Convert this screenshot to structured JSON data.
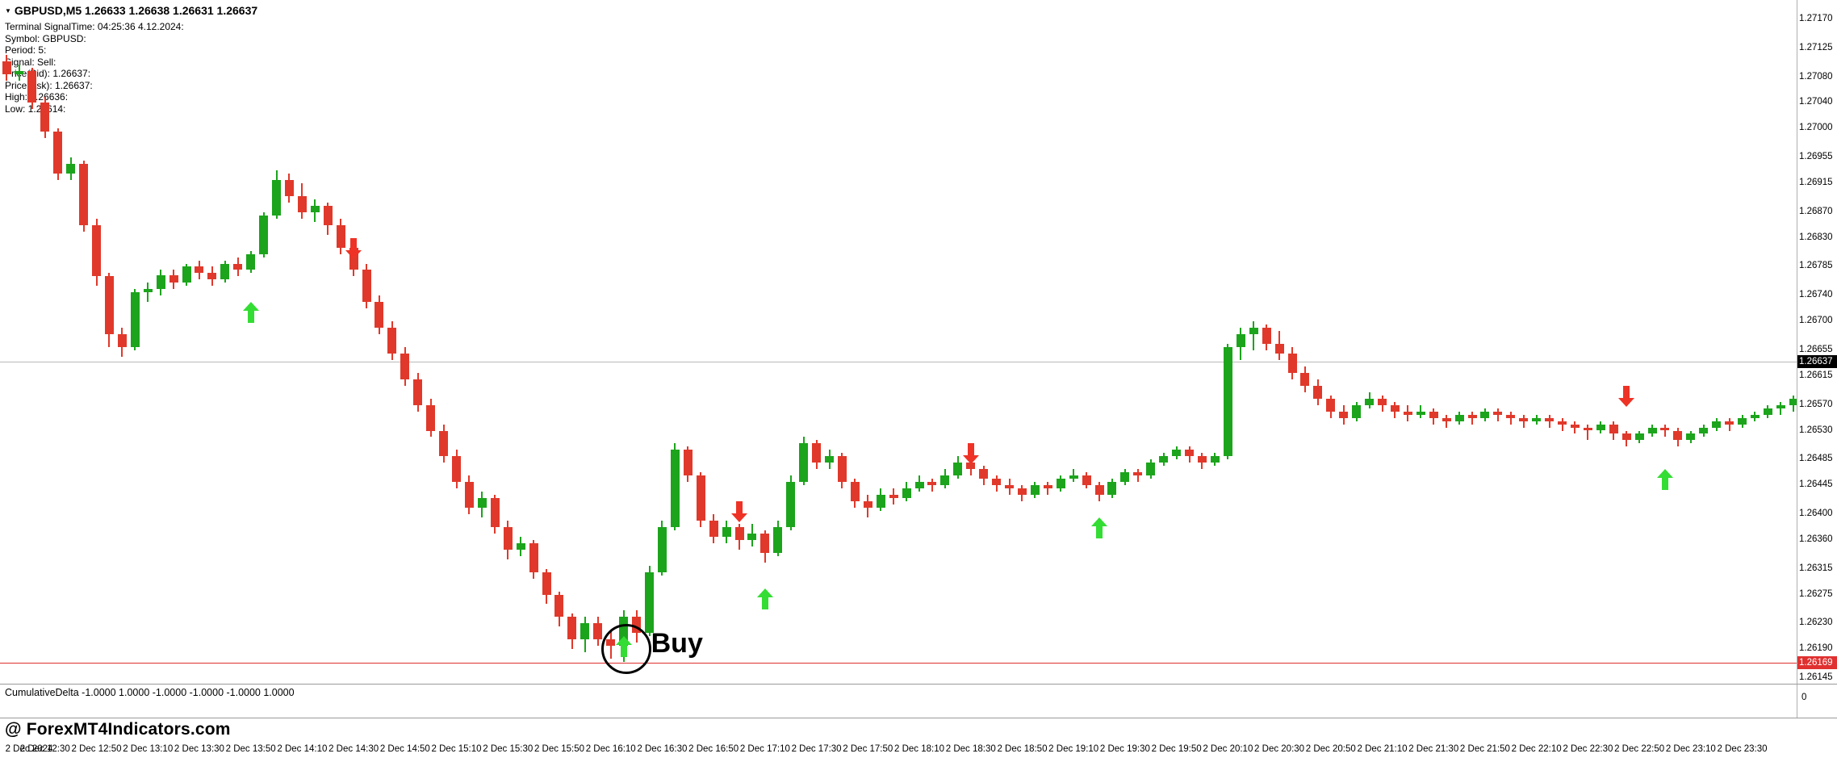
{
  "window": {
    "title_line": "GBPUSD,M5 1.26633 1.26638 1.26631 1.26637",
    "symbol_triangle_icon": "▼"
  },
  "comment_lines": [
    "Terminal SignalTime: 04:25:36   4.12.2024:",
    "Symbol: GBPUSD:",
    "Period: 5:",
    "Signal: Sell:",
    "Price(Bid): 1.26637:",
    "Price(Ask): 1.26637:",
    "High: 1.26636:",
    "Low: 1.26614:"
  ],
  "watermark": "@ ForexMT4Indicators.com",
  "indicator_panel": {
    "label": "CumulativeDelta -1.0000 1.0000 -1.0000 -1.0000 -1.0000 1.0000",
    "axis_zero": "0"
  },
  "colors": {
    "bull_candle": "#1ca41c",
    "bear_candle": "#e0392b",
    "buy_arrow": "#33dd33",
    "sell_arrow": "#ee3326",
    "bid_line": "#b9b9b9",
    "alert_line": "#e03030",
    "bid_tag_bg": "#000000",
    "alert_tag_bg": "#e03030"
  },
  "chart_data": {
    "type": "candlestick",
    "symbol": "GBPUSD",
    "timeframe": "M5",
    "start_time": "2 Dec 12:15",
    "interval_minutes": 5,
    "ohlc_fields": [
      "open",
      "high",
      "low",
      "close"
    ],
    "candles": [
      [
        1.27105,
        1.27115,
        1.27075,
        1.27085
      ],
      [
        1.27085,
        1.271,
        1.27075,
        1.2709
      ],
      [
        1.2709,
        1.27095,
        1.2703,
        1.2704
      ],
      [
        1.2704,
        1.2705,
        1.26985,
        1.26995
      ],
      [
        1.26995,
        1.27,
        1.2692,
        1.2693
      ],
      [
        1.2693,
        1.26955,
        1.2692,
        1.26945
      ],
      [
        1.26945,
        1.2695,
        1.2684,
        1.2685
      ],
      [
        1.2685,
        1.2686,
        1.26755,
        1.2677
      ],
      [
        1.2677,
        1.26775,
        1.2666,
        1.2668
      ],
      [
        1.2668,
        1.2669,
        1.26645,
        1.2666
      ],
      [
        1.2666,
        1.2675,
        1.26655,
        1.26745
      ],
      [
        1.26745,
        1.2676,
        1.2673,
        1.2675
      ],
      [
        1.2675,
        1.2678,
        1.2674,
        1.26772
      ],
      [
        1.26772,
        1.2678,
        1.2675,
        1.2676
      ],
      [
        1.2676,
        1.2679,
        1.26755,
        1.26785
      ],
      [
        1.26785,
        1.26795,
        1.26765,
        1.26775
      ],
      [
        1.26775,
        1.26785,
        1.26755,
        1.26765
      ],
      [
        1.26765,
        1.26795,
        1.2676,
        1.2679
      ],
      [
        1.2679,
        1.268,
        1.2677,
        1.2678
      ],
      [
        1.2678,
        1.2681,
        1.26775,
        1.26805
      ],
      [
        1.26805,
        1.2687,
        1.268,
        1.26865
      ],
      [
        1.26865,
        1.26935,
        1.2686,
        1.2692
      ],
      [
        1.2692,
        1.2693,
        1.26885,
        1.26895
      ],
      [
        1.26895,
        1.26915,
        1.2686,
        1.2687
      ],
      [
        1.2687,
        1.2689,
        1.26855,
        1.2688
      ],
      [
        1.2688,
        1.26885,
        1.26835,
        1.2685
      ],
      [
        1.2685,
        1.2686,
        1.26805,
        1.26815
      ],
      [
        1.26815,
        1.26825,
        1.2677,
        1.2678
      ],
      [
        1.2678,
        1.2679,
        1.2672,
        1.2673
      ],
      [
        1.2673,
        1.2674,
        1.2668,
        1.2669
      ],
      [
        1.2669,
        1.267,
        1.2664,
        1.2665
      ],
      [
        1.2665,
        1.2666,
        1.266,
        1.2661
      ],
      [
        1.2661,
        1.2662,
        1.2656,
        1.2657
      ],
      [
        1.2657,
        1.2658,
        1.2652,
        1.2653
      ],
      [
        1.2653,
        1.2654,
        1.2648,
        1.2649
      ],
      [
        1.2649,
        1.265,
        1.2644,
        1.2645
      ],
      [
        1.2645,
        1.2646,
        1.264,
        1.2641
      ],
      [
        1.2641,
        1.26435,
        1.26395,
        1.26425
      ],
      [
        1.26425,
        1.2643,
        1.2637,
        1.2638
      ],
      [
        1.2638,
        1.2639,
        1.2633,
        1.26345
      ],
      [
        1.26345,
        1.26365,
        1.26335,
        1.26355
      ],
      [
        1.26355,
        1.2636,
        1.263,
        1.2631
      ],
      [
        1.2631,
        1.26315,
        1.2626,
        1.26275
      ],
      [
        1.26275,
        1.2628,
        1.26225,
        1.2624
      ],
      [
        1.2624,
        1.26245,
        1.2619,
        1.26205
      ],
      [
        1.26205,
        1.2624,
        1.26185,
        1.2623
      ],
      [
        1.2623,
        1.2624,
        1.26195,
        1.26205
      ],
      [
        1.26205,
        1.2622,
        1.26175,
        1.26195
      ],
      [
        1.26195,
        1.2625,
        1.2617,
        1.2624
      ],
      [
        1.2624,
        1.2625,
        1.262,
        1.26215
      ],
      [
        1.26215,
        1.2632,
        1.2621,
        1.2631
      ],
      [
        1.2631,
        1.2639,
        1.26305,
        1.2638
      ],
      [
        1.2638,
        1.2651,
        1.26375,
        1.265
      ],
      [
        1.265,
        1.26505,
        1.2645,
        1.2646
      ],
      [
        1.2646,
        1.26465,
        1.2638,
        1.2639
      ],
      [
        1.2639,
        1.264,
        1.26355,
        1.26365
      ],
      [
        1.26365,
        1.2639,
        1.26355,
        1.2638
      ],
      [
        1.2638,
        1.26385,
        1.26345,
        1.2636
      ],
      [
        1.2636,
        1.26385,
        1.2635,
        1.2637
      ],
      [
        1.2637,
        1.26375,
        1.26325,
        1.2634
      ],
      [
        1.2634,
        1.2639,
        1.26335,
        1.2638
      ],
      [
        1.2638,
        1.2646,
        1.26375,
        1.2645
      ],
      [
        1.2645,
        1.2652,
        1.26445,
        1.2651
      ],
      [
        1.2651,
        1.26515,
        1.2647,
        1.2648
      ],
      [
        1.2648,
        1.265,
        1.2647,
        1.2649
      ],
      [
        1.2649,
        1.26495,
        1.2644,
        1.2645
      ],
      [
        1.2645,
        1.26455,
        1.2641,
        1.2642
      ],
      [
        1.2642,
        1.2643,
        1.26395,
        1.2641
      ],
      [
        1.2641,
        1.2644,
        1.26405,
        1.2643
      ],
      [
        1.2643,
        1.2644,
        1.26415,
        1.26425
      ],
      [
        1.26425,
        1.2645,
        1.2642,
        1.2644
      ],
      [
        1.2644,
        1.2646,
        1.26435,
        1.2645
      ],
      [
        1.2645,
        1.26455,
        1.26435,
        1.26445
      ],
      [
        1.26445,
        1.2647,
        1.2644,
        1.2646
      ],
      [
        1.2646,
        1.2649,
        1.26455,
        1.2648
      ],
      [
        1.2648,
        1.26485,
        1.2646,
        1.2647
      ],
      [
        1.2647,
        1.26475,
        1.26445,
        1.26455
      ],
      [
        1.26455,
        1.2646,
        1.26435,
        1.26445
      ],
      [
        1.26445,
        1.26455,
        1.2643,
        1.2644
      ],
      [
        1.2644,
        1.26445,
        1.2642,
        1.2643
      ],
      [
        1.2643,
        1.2645,
        1.26425,
        1.26445
      ],
      [
        1.26445,
        1.2645,
        1.2643,
        1.2644
      ],
      [
        1.2644,
        1.2646,
        1.26435,
        1.26455
      ],
      [
        1.26455,
        1.2647,
        1.2645,
        1.2646
      ],
      [
        1.2646,
        1.26465,
        1.2644,
        1.26445
      ],
      [
        1.26445,
        1.2645,
        1.2642,
        1.2643
      ],
      [
        1.2643,
        1.26455,
        1.26425,
        1.2645
      ],
      [
        1.2645,
        1.2647,
        1.26445,
        1.26465
      ],
      [
        1.26465,
        1.2647,
        1.2645,
        1.2646
      ],
      [
        1.2646,
        1.26485,
        1.26455,
        1.2648
      ],
      [
        1.2648,
        1.26495,
        1.26475,
        1.2649
      ],
      [
        1.2649,
        1.26505,
        1.26485,
        1.265
      ],
      [
        1.265,
        1.26505,
        1.2648,
        1.2649
      ],
      [
        1.2649,
        1.26495,
        1.2647,
        1.2648
      ],
      [
        1.2648,
        1.26495,
        1.26475,
        1.2649
      ],
      [
        1.2649,
        1.26665,
        1.26485,
        1.2666
      ],
      [
        1.2666,
        1.2669,
        1.2664,
        1.2668
      ],
      [
        1.2668,
        1.267,
        1.26655,
        1.2669
      ],
      [
        1.2669,
        1.26695,
        1.26655,
        1.26665
      ],
      [
        1.26665,
        1.26685,
        1.2664,
        1.2665
      ],
      [
        1.2665,
        1.2666,
        1.2661,
        1.2662
      ],
      [
        1.2662,
        1.2663,
        1.2659,
        1.266
      ],
      [
        1.266,
        1.2661,
        1.2657,
        1.2658
      ],
      [
        1.2658,
        1.26585,
        1.2655,
        1.2656
      ],
      [
        1.2656,
        1.2657,
        1.2654,
        1.2655
      ],
      [
        1.2655,
        1.26575,
        1.26545,
        1.2657
      ],
      [
        1.2657,
        1.2659,
        1.26565,
        1.2658
      ],
      [
        1.2658,
        1.26585,
        1.2656,
        1.2657
      ],
      [
        1.2657,
        1.26575,
        1.2655,
        1.2656
      ],
      [
        1.2656,
        1.2657,
        1.26545,
        1.26555
      ],
      [
        1.26555,
        1.2657,
        1.2655,
        1.2656
      ],
      [
        1.2656,
        1.26565,
        1.2654,
        1.2655
      ],
      [
        1.2655,
        1.26555,
        1.26535,
        1.26545
      ],
      [
        1.26545,
        1.2656,
        1.2654,
        1.26555
      ],
      [
        1.26555,
        1.2656,
        1.2654,
        1.2655
      ],
      [
        1.2655,
        1.26565,
        1.26545,
        1.2656
      ],
      [
        1.2656,
        1.26565,
        1.26545,
        1.26555
      ],
      [
        1.26555,
        1.2656,
        1.2654,
        1.2655
      ],
      [
        1.2655,
        1.26555,
        1.26535,
        1.26545
      ],
      [
        1.26545,
        1.26555,
        1.2654,
        1.2655
      ],
      [
        1.2655,
        1.26555,
        1.26535,
        1.26545
      ],
      [
        1.26545,
        1.2655,
        1.2653,
        1.2654
      ],
      [
        1.2654,
        1.26545,
        1.26525,
        1.26535
      ],
      [
        1.26535,
        1.2654,
        1.26515,
        1.2653
      ],
      [
        1.2653,
        1.26545,
        1.26525,
        1.2654
      ],
      [
        1.2654,
        1.26545,
        1.26515,
        1.26525
      ],
      [
        1.26525,
        1.2653,
        1.26505,
        1.26515
      ],
      [
        1.26515,
        1.2653,
        1.2651,
        1.26525
      ],
      [
        1.26525,
        1.2654,
        1.2652,
        1.26535
      ],
      [
        1.26535,
        1.2654,
        1.2652,
        1.2653
      ],
      [
        1.2653,
        1.26535,
        1.26505,
        1.26515
      ],
      [
        1.26515,
        1.2653,
        1.2651,
        1.26525
      ],
      [
        1.26525,
        1.2654,
        1.2652,
        1.26535
      ],
      [
        1.26535,
        1.2655,
        1.2653,
        1.26545
      ],
      [
        1.26545,
        1.2655,
        1.2653,
        1.2654
      ],
      [
        1.2654,
        1.26555,
        1.26535,
        1.2655
      ],
      [
        1.2655,
        1.2656,
        1.26545,
        1.26555
      ],
      [
        1.26555,
        1.2657,
        1.2655,
        1.26565
      ],
      [
        1.26565,
        1.26575,
        1.26555,
        1.2657
      ],
      [
        1.2657,
        1.26585,
        1.2656,
        1.2658
      ]
    ],
    "price_axis": {
      "min": 1.26145,
      "max": 1.2717,
      "labels": [
        "1.27170",
        "1.27125",
        "1.27080",
        "1.27040",
        "1.27000",
        "1.26955",
        "1.26915",
        "1.26870",
        "1.26830",
        "1.26785",
        "1.26740",
        "1.26700",
        "1.26655",
        "1.26615",
        "1.26570",
        "1.26530",
        "1.26485",
        "1.26445",
        "1.26400",
        "1.26360",
        "1.26315",
        "1.26275",
        "1.26230",
        "1.26190",
        "1.26145"
      ]
    },
    "bid_line": {
      "price": 1.26637,
      "label": "1.26637"
    },
    "alert_line": {
      "price": 1.26169,
      "label": "1.26169"
    },
    "time_axis": [
      {
        "label": "2 Dec 2024",
        "bar": 1
      },
      {
        "label": "2 Dec 12:30",
        "bar": 3
      },
      {
        "label": "2 Dec 12:50",
        "bar": 7
      },
      {
        "label": "2 Dec 13:10",
        "bar": 11
      },
      {
        "label": "2 Dec 13:30",
        "bar": 15
      },
      {
        "label": "2 Dec 13:50",
        "bar": 19
      },
      {
        "label": "2 Dec 14:10",
        "bar": 23
      },
      {
        "label": "2 Dec 14:30",
        "bar": 27
      },
      {
        "label": "2 Dec 14:50",
        "bar": 31
      },
      {
        "label": "2 Dec 15:10",
        "bar": 35
      },
      {
        "label": "2 Dec 15:30",
        "bar": 39
      },
      {
        "label": "2 Dec 15:50",
        "bar": 43
      },
      {
        "label": "2 Dec 16:10",
        "bar": 47
      },
      {
        "label": "2 Dec 16:30",
        "bar": 51
      },
      {
        "label": "2 Dec 16:50",
        "bar": 55
      },
      {
        "label": "2 Dec 17:10",
        "bar": 59
      },
      {
        "label": "2 Dec 17:30",
        "bar": 63
      },
      {
        "label": "2 Dec 17:50",
        "bar": 67
      },
      {
        "label": "2 Dec 18:10",
        "bar": 71
      },
      {
        "label": "2 Dec 18:30",
        "bar": 75
      },
      {
        "label": "2 Dec 18:50",
        "bar": 79
      },
      {
        "label": "2 Dec 19:10",
        "bar": 83
      },
      {
        "label": "2 Dec 19:30",
        "bar": 87
      },
      {
        "label": "2 Dec 19:50",
        "bar": 91
      },
      {
        "label": "2 Dec 20:10",
        "bar": 95
      },
      {
        "label": "2 Dec 20:30",
        "bar": 99
      },
      {
        "label": "2 Dec 20:50",
        "bar": 103
      },
      {
        "label": "2 Dec 21:10",
        "bar": 107
      },
      {
        "label": "2 Dec 21:30",
        "bar": 111
      },
      {
        "label": "2 Dec 21:50",
        "bar": 115
      },
      {
        "label": "2 Dec 22:10",
        "bar": 119
      },
      {
        "label": "2 Dec 22:30",
        "bar": 123
      },
      {
        "label": "2 Dec 22:50",
        "bar": 127
      },
      {
        "label": "2 Dec 23:10",
        "bar": 131
      },
      {
        "label": "2 Dec 23:30",
        "bar": 135
      }
    ],
    "signals": [
      {
        "type": "buy",
        "bar": 19,
        "price": 1.2673
      },
      {
        "type": "sell",
        "bar": 27,
        "price": 1.2683
      },
      {
        "type": "buy",
        "bar": 48,
        "price": 1.2621,
        "circled": true,
        "label": "Buy"
      },
      {
        "type": "sell",
        "bar": 57,
        "price": 1.2642
      },
      {
        "type": "buy",
        "bar": 59,
        "price": 1.26285
      },
      {
        "type": "sell",
        "bar": 75,
        "price": 1.2651
      },
      {
        "type": "buy",
        "bar": 85,
        "price": 1.26395
      },
      {
        "type": "sell",
        "bar": 126,
        "price": 1.266
      },
      {
        "type": "buy",
        "bar": 129,
        "price": 1.2647
      }
    ]
  }
}
